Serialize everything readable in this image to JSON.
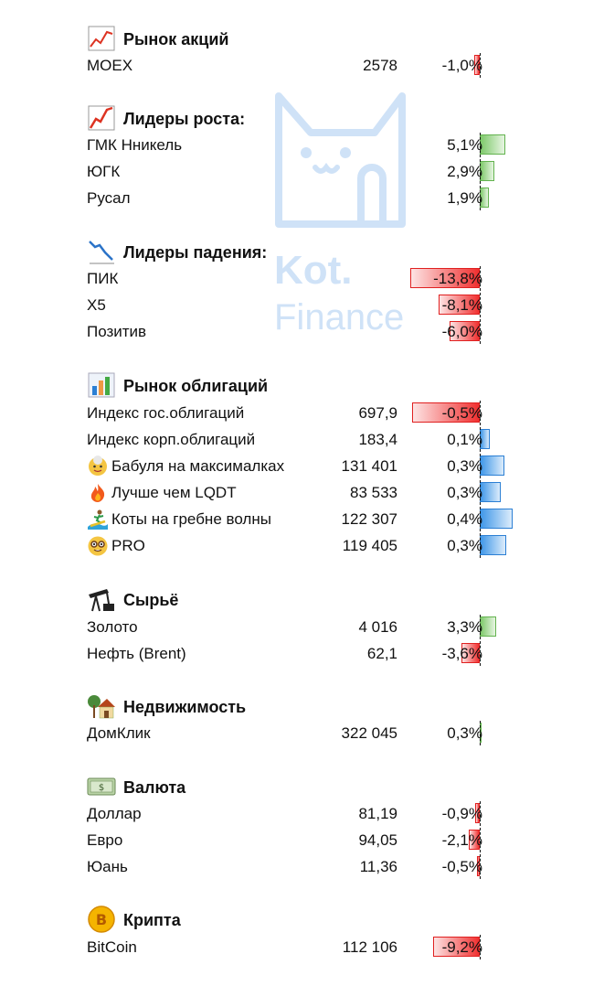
{
  "watermark": {
    "line1": "Kot.",
    "line2": "Finance"
  },
  "sections": [
    {
      "title": "Рынок акций",
      "icon": "chart-up-icon",
      "rows": [
        {
          "name": "MOEX",
          "value": "2578",
          "pct": "-1,0%",
          "change": -1.0
        }
      ]
    },
    {
      "title": "Лидеры роста:",
      "icon": "chart-up-icon",
      "rows": [
        {
          "name": "ГМК Нникель",
          "value": "",
          "pct": "5,1%",
          "change": 5.1
        },
        {
          "name": "ЮГК",
          "value": "",
          "pct": "2,9%",
          "change": 2.9
        },
        {
          "name": "Русал",
          "value": "",
          "pct": "1,9%",
          "change": 1.9
        }
      ]
    },
    {
      "title": "Лидеры падения:",
      "icon": "chart-down-icon",
      "rows": [
        {
          "name": "ПИК",
          "value": "",
          "pct": "-13,8%",
          "change": -13.8
        },
        {
          "name": "Х5",
          "value": "",
          "pct": "-8,1%",
          "change": -8.1
        },
        {
          "name": "Позитив",
          "value": "",
          "pct": "-6,0%",
          "change": -6.0
        }
      ]
    },
    {
      "title": "Рынок облигаций",
      "icon": "bar-chart-icon",
      "rows": [
        {
          "name": "Индекс гос.облигаций",
          "value": "697,9",
          "pct": "-0,5%",
          "change": -0.5,
          "bar": "red",
          "mag": 0.95
        },
        {
          "name": "Индекс корп.облигаций",
          "value": "183,4",
          "pct": "0,1%",
          "change": 0.1,
          "bar": "blue",
          "mag": 0.25
        },
        {
          "name": "Бабуля на максималках",
          "value": "131 401",
          "pct": "0,3%",
          "change": 0.3,
          "bar": "blue",
          "mag": 0.65,
          "emoji": "grandma-icon"
        },
        {
          "name": "Лучше чем LQDT",
          "value": "83 533",
          "pct": "0,3%",
          "change": 0.3,
          "bar": "blue",
          "mag": 0.55,
          "emoji": "fire-icon"
        },
        {
          "name": "Коты на гребне волны",
          "value": "122 307",
          "pct": "0,4%",
          "change": 0.4,
          "bar": "blue",
          "mag": 0.85,
          "emoji": "surfer-icon"
        },
        {
          "name": "PRO",
          "value": "119 405",
          "pct": "0,3%",
          "change": 0.3,
          "bar": "blue",
          "mag": 0.7,
          "emoji": "nerd-face-icon"
        }
      ]
    },
    {
      "title": "Сырьё",
      "icon": "oil-pump-icon",
      "rows": [
        {
          "name": "Золото",
          "value": "4 016",
          "pct": "3,3%",
          "change": 3.3
        },
        {
          "name": "Нефть (Brent)",
          "value": "62,1",
          "pct": "-3,6%",
          "change": -3.6
        }
      ]
    },
    {
      "title": "Недвижимость",
      "icon": "house-icon",
      "rows": [
        {
          "name": "ДомКлик",
          "value": "322 045",
          "pct": "0,3%",
          "change": 0.3
        }
      ]
    },
    {
      "title": "Валюта",
      "icon": "banknote-icon",
      "rows": [
        {
          "name": "Доллар",
          "value": "81,19",
          "pct": "-0,9%",
          "change": -0.9
        },
        {
          "name": "Евро",
          "value": "94,05",
          "pct": "-2,1%",
          "change": -2.1
        },
        {
          "name": "Юань",
          "value": "11,36",
          "pct": "-0,5%",
          "change": -0.5
        }
      ]
    },
    {
      "title": "Крипта",
      "icon": "bitcoin-icon",
      "rows": [
        {
          "name": "BitCoin",
          "value": "112 106",
          "pct": "-9,2%",
          "change": -9.2
        }
      ]
    }
  ]
}
